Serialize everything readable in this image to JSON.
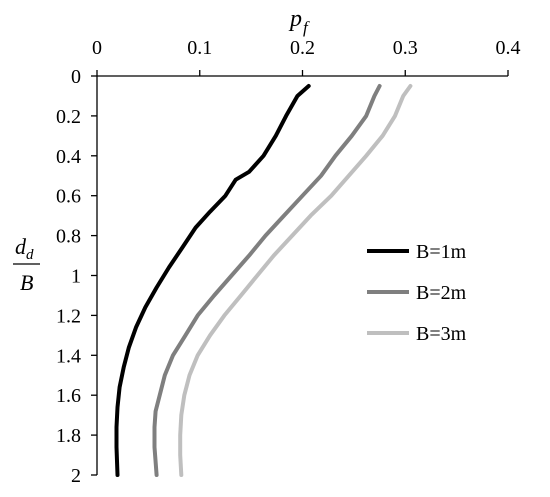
{
  "chart_data": {
    "type": "line",
    "x_axis": {
      "label": "p",
      "label_subscript": "f",
      "position": "top",
      "range": [
        0,
        0.4
      ],
      "ticks": [
        "0",
        "0.1",
        "0.2",
        "0.3",
        "0.4"
      ]
    },
    "y_axis": {
      "label_numerator": "d",
      "label_numerator_subscript": "d",
      "label_denominator": "B",
      "inverted": true,
      "range": [
        0,
        2
      ],
      "ticks": [
        "0",
        "0.2",
        "0.4",
        "0.6",
        "0.8",
        "1",
        "1.2",
        "1.4",
        "1.6",
        "1.8",
        "2"
      ]
    },
    "grid": false,
    "legend": {
      "position": "right"
    },
    "series": [
      {
        "name": "B=1m",
        "color": "#000000",
        "points": [
          [
            0.206,
            0.05
          ],
          [
            0.195,
            0.1
          ],
          [
            0.184,
            0.2
          ],
          [
            0.174,
            0.3
          ],
          [
            0.162,
            0.4
          ],
          [
            0.148,
            0.48
          ],
          [
            0.135,
            0.52
          ],
          [
            0.125,
            0.6
          ],
          [
            0.11,
            0.68
          ],
          [
            0.096,
            0.76
          ],
          [
            0.083,
            0.86
          ],
          [
            0.07,
            0.96
          ],
          [
            0.058,
            1.06
          ],
          [
            0.047,
            1.16
          ],
          [
            0.038,
            1.26
          ],
          [
            0.031,
            1.36
          ],
          [
            0.026,
            1.46
          ],
          [
            0.022,
            1.56
          ],
          [
            0.02,
            1.66
          ],
          [
            0.019,
            1.76
          ],
          [
            0.019,
            1.86
          ],
          [
            0.02,
            2.0
          ]
        ]
      },
      {
        "name": "B=2m",
        "color": "#7f7f7f",
        "points": [
          [
            0.275,
            0.05
          ],
          [
            0.27,
            0.1
          ],
          [
            0.262,
            0.2
          ],
          [
            0.248,
            0.3
          ],
          [
            0.232,
            0.4
          ],
          [
            0.218,
            0.5
          ],
          [
            0.2,
            0.6
          ],
          [
            0.182,
            0.7
          ],
          [
            0.164,
            0.8
          ],
          [
            0.148,
            0.9
          ],
          [
            0.131,
            1.0
          ],
          [
            0.114,
            1.1
          ],
          [
            0.098,
            1.2
          ],
          [
            0.086,
            1.3
          ],
          [
            0.074,
            1.4
          ],
          [
            0.066,
            1.5
          ],
          [
            0.061,
            1.6
          ],
          [
            0.057,
            1.68
          ],
          [
            0.056,
            1.76
          ],
          [
            0.056,
            1.86
          ],
          [
            0.058,
            2.0
          ]
        ]
      },
      {
        "name": "B=3m",
        "color": "#bfbfbf",
        "points": [
          [
            0.305,
            0.05
          ],
          [
            0.298,
            0.1
          ],
          [
            0.29,
            0.2
          ],
          [
            0.278,
            0.3
          ],
          [
            0.262,
            0.4
          ],
          [
            0.245,
            0.5
          ],
          [
            0.228,
            0.6
          ],
          [
            0.208,
            0.7
          ],
          [
            0.19,
            0.8
          ],
          [
            0.172,
            0.9
          ],
          [
            0.156,
            1.0
          ],
          [
            0.14,
            1.1
          ],
          [
            0.124,
            1.2
          ],
          [
            0.11,
            1.3
          ],
          [
            0.098,
            1.4
          ],
          [
            0.09,
            1.5
          ],
          [
            0.085,
            1.6
          ],
          [
            0.082,
            1.7
          ],
          [
            0.081,
            1.8
          ],
          [
            0.081,
            1.9
          ],
          [
            0.082,
            2.0
          ]
        ]
      }
    ]
  }
}
